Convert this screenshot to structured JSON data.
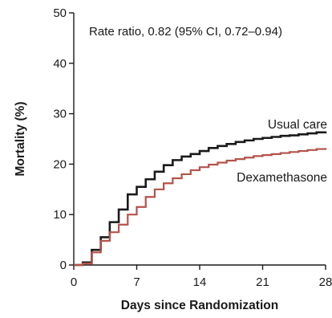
{
  "chart_data": {
    "type": "line",
    "step": true,
    "xlabel": "Days since Randomization",
    "ylabel": "Mortality (%)",
    "xlim": [
      0,
      28
    ],
    "ylim": [
      0,
      50
    ],
    "xticks": [
      0,
      7,
      14,
      21,
      28
    ],
    "yticks": [
      0,
      10,
      20,
      30,
      40,
      50
    ],
    "grid": false,
    "annotation": "Rate ratio, 0.82 (95% CI, 0.72–0.94)",
    "series": [
      {
        "name": "Usual care",
        "color": "#1a1a1a",
        "x": [
          0,
          1,
          2,
          3,
          4,
          5,
          6,
          7,
          8,
          9,
          10,
          11,
          12,
          13,
          14,
          15,
          16,
          17,
          18,
          19,
          20,
          21,
          22,
          23,
          24,
          25,
          26,
          27,
          28
        ],
        "y": [
          0,
          0.5,
          3,
          5.5,
          8.5,
          11,
          14,
          15.5,
          17,
          18.5,
          19.8,
          20.8,
          21.5,
          22,
          22.6,
          23.2,
          23.6,
          24,
          24.4,
          24.7,
          25,
          25.2,
          25.4,
          25.6,
          25.7,
          25.9,
          26.1,
          26.3,
          26.5
        ]
      },
      {
        "name": "Dexamethasone",
        "color": "#b5524a",
        "x": [
          0,
          1,
          2,
          3,
          4,
          5,
          6,
          7,
          8,
          9,
          10,
          11,
          12,
          13,
          14,
          15,
          16,
          17,
          18,
          19,
          20,
          21,
          22,
          23,
          24,
          25,
          26,
          27,
          28
        ],
        "y": [
          0,
          0.3,
          2.5,
          4.8,
          6.5,
          8,
          10,
          11.5,
          13.5,
          15,
          16.2,
          17.2,
          18,
          18.8,
          19.4,
          19.9,
          20.3,
          20.7,
          21,
          21.3,
          21.6,
          21.8,
          22,
          22.2,
          22.4,
          22.6,
          22.8,
          23,
          23.2
        ]
      }
    ]
  }
}
